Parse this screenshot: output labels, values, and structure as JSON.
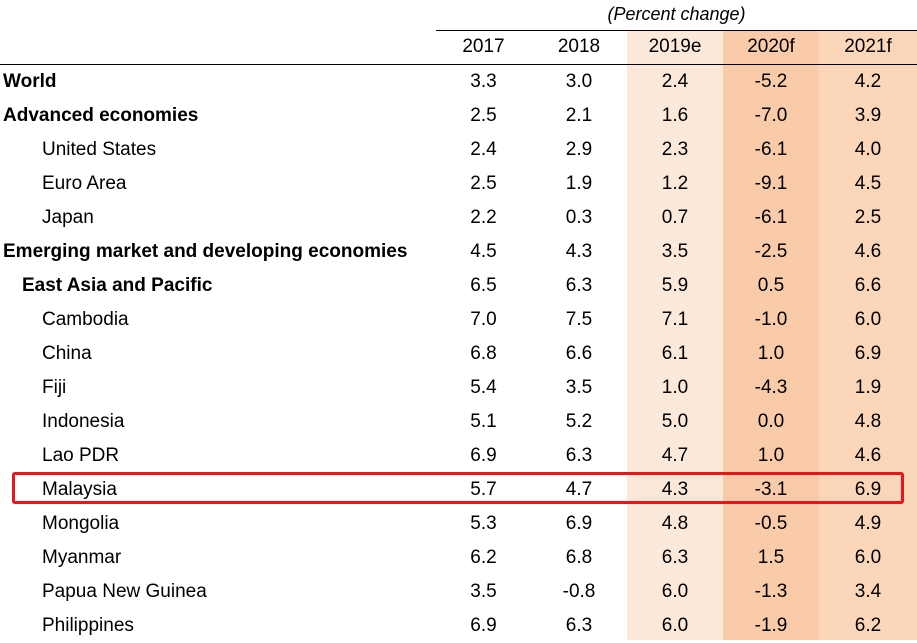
{
  "subtitle": "(Percent change)",
  "colors": {
    "band_2019": "#fce9da",
    "band_2020": "#f9cba8",
    "band_2021": "#fbd6b9",
    "highlight": "#e8161a"
  },
  "chart_data": {
    "type": "table",
    "subtitle": "(Percent change)",
    "columns": [
      "2017",
      "2018",
      "2019e",
      "2020f",
      "2021f"
    ],
    "rows": [
      {
        "label": "World",
        "level": 0,
        "values": [
          "3.3",
          "3.0",
          "2.4",
          "-5.2",
          "4.2"
        ]
      },
      {
        "label": "Advanced economies",
        "level": 0,
        "values": [
          "2.5",
          "2.1",
          "1.6",
          "-7.0",
          "3.9"
        ]
      },
      {
        "label": "United States",
        "level": 2,
        "values": [
          "2.4",
          "2.9",
          "2.3",
          "-6.1",
          "4.0"
        ]
      },
      {
        "label": "Euro Area",
        "level": 2,
        "values": [
          "2.5",
          "1.9",
          "1.2",
          "-9.1",
          "4.5"
        ]
      },
      {
        "label": "Japan",
        "level": 2,
        "values": [
          "2.2",
          "0.3",
          "0.7",
          "-6.1",
          "2.5"
        ]
      },
      {
        "label": "Emerging market and developing economies",
        "level": 0,
        "values": [
          "4.5",
          "4.3",
          "3.5",
          "-2.5",
          "4.6"
        ]
      },
      {
        "label": "East Asia and Pacific",
        "level": 1,
        "values": [
          "6.5",
          "6.3",
          "5.9",
          "0.5",
          "6.6"
        ]
      },
      {
        "label": "Cambodia",
        "level": 2,
        "values": [
          "7.0",
          "7.5",
          "7.1",
          "-1.0",
          "6.0"
        ]
      },
      {
        "label": "China",
        "level": 2,
        "values": [
          "6.8",
          "6.6",
          "6.1",
          "1.0",
          "6.9"
        ]
      },
      {
        "label": "Fiji",
        "level": 2,
        "values": [
          "5.4",
          "3.5",
          "1.0",
          "-4.3",
          "1.9"
        ]
      },
      {
        "label": "Indonesia",
        "level": 2,
        "values": [
          "5.1",
          "5.2",
          "5.0",
          "0.0",
          "4.8"
        ]
      },
      {
        "label": "Lao PDR",
        "level": 2,
        "values": [
          "6.9",
          "6.3",
          "4.7",
          "1.0",
          "4.6"
        ]
      },
      {
        "label": "Malaysia",
        "level": 2,
        "highlighted": true,
        "values": [
          "5.7",
          "4.7",
          "4.3",
          "-3.1",
          "6.9"
        ]
      },
      {
        "label": "Mongolia",
        "level": 2,
        "values": [
          "5.3",
          "6.9",
          "4.8",
          "-0.5",
          "4.9"
        ]
      },
      {
        "label": "Myanmar",
        "level": 2,
        "values": [
          "6.2",
          "6.8",
          "6.3",
          "1.5",
          "6.0"
        ]
      },
      {
        "label": "Papua New Guinea",
        "level": 2,
        "values": [
          "3.5",
          "-0.8",
          "6.0",
          "-1.3",
          "3.4"
        ]
      },
      {
        "label": "Philippines",
        "level": 2,
        "values": [
          "6.9",
          "6.3",
          "6.0",
          "-1.9",
          "6.2"
        ]
      }
    ]
  }
}
